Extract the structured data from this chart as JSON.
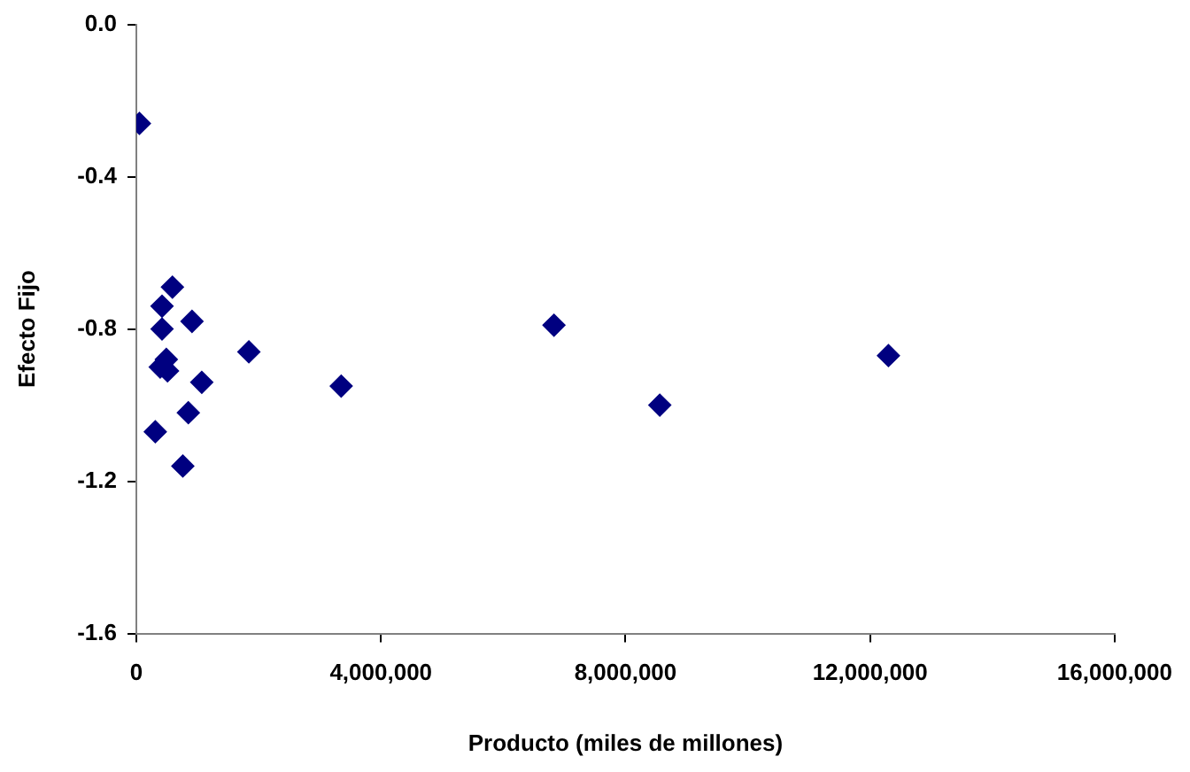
{
  "chart_data": {
    "type": "scatter",
    "xlabel": "Producto (miles de millones)",
    "ylabel": "Efecto Fijo",
    "x": [
      50000,
      590000,
      420000,
      420000,
      490000,
      390000,
      510000,
      910000,
      1840000,
      1070000,
      850000,
      310000,
      760000,
      3350000,
      6830000,
      8560000,
      12300000
    ],
    "series": [
      {
        "color": "#000080",
        "values": [
          -0.26,
          -0.69,
          -0.74,
          -0.8,
          -0.88,
          -0.9,
          -0.91,
          -0.78,
          -0.86,
          -0.94,
          -1.02,
          -1.07,
          -1.16,
          -0.95,
          -0.79,
          -1.0,
          -0.87
        ]
      }
    ],
    "xlim": [
      0,
      16000000
    ],
    "xticks": [
      0,
      {
        "value": 4000000,
        "label": "4,000,000"
      },
      {
        "value": 8000000,
        "label": "8,000,000"
      },
      {
        "value": 12000000,
        "label": "12,000,000"
      },
      {
        "value": 16000000,
        "label": "16,000,000"
      }
    ],
    "ylim": [
      -1.6,
      0
    ],
    "yticks": [
      {
        "value": -1.6,
        "label": "-1.6"
      },
      {
        "value": -1.2,
        "label": "-1.2"
      },
      {
        "value": -0.8,
        "label": "-0.8"
      },
      {
        "value": -0.4,
        "label": "-0.4"
      },
      {
        "value": 0,
        "label": "0.0"
      }
    ],
    "grid": false,
    "legend": false,
    "marker": "diamond"
  }
}
